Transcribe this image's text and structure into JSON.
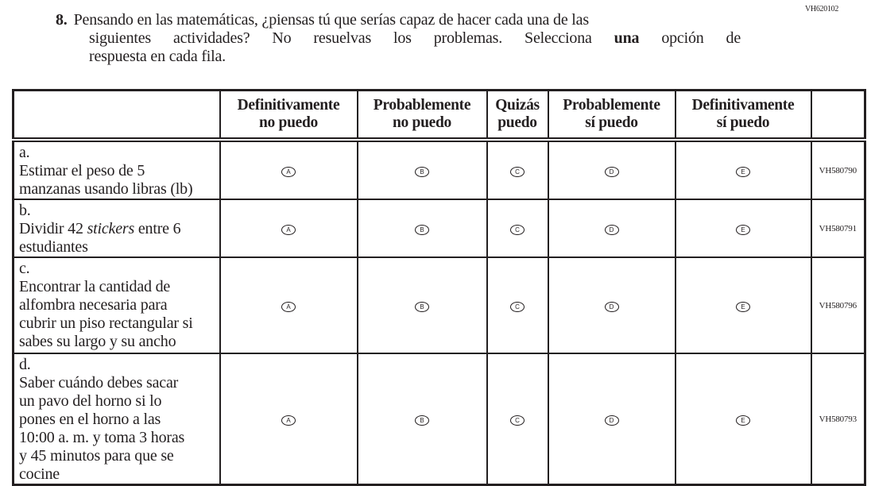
{
  "page_code": "VH620102",
  "question": {
    "number": "8.",
    "line1": "Pensando en las matemáticas, ¿piensas tú que serías capaz de hacer cada una de las",
    "line2_before": "siguientes actividades? No resuelvas los problemas. Selecciona ",
    "line2_bold": "una",
    "line2_after": " opción de",
    "line3": "respuesta en cada fila."
  },
  "columns": [
    {
      "l1": "Definitivamente",
      "l2": "no puedo"
    },
    {
      "l1": "Probablemente",
      "l2": "no puedo"
    },
    {
      "l1": "Quizás",
      "l2": "puedo"
    },
    {
      "l1": "Probablemente",
      "l2": "sí puedo"
    },
    {
      "l1": "Definitivamente",
      "l2": "sí puedo"
    }
  ],
  "options": [
    "A",
    "B",
    "C",
    "D",
    "E"
  ],
  "rows": [
    {
      "label": "a.",
      "text": "Estimar el peso de 5 manzanas usando libras (lb)",
      "code": "VH580790"
    },
    {
      "label": "b.",
      "text_before": "Dividir 42 ",
      "text_italic": "stickers",
      "text_after": " entre 6 estudiantes",
      "code": "VH580791"
    },
    {
      "label": "c.",
      "text": "Encontrar la cantidad de alfombra necesaria para cubrir un piso rectangular si sabes su largo y su ancho",
      "code": "VH580796"
    },
    {
      "label": "d.",
      "text": "Saber cuándo debes sacar un pavo del horno si lo pones en el horno a las 10:00 a. m. y toma 3 horas y 45 minutos para que se cocine",
      "code": "VH580793"
    }
  ]
}
